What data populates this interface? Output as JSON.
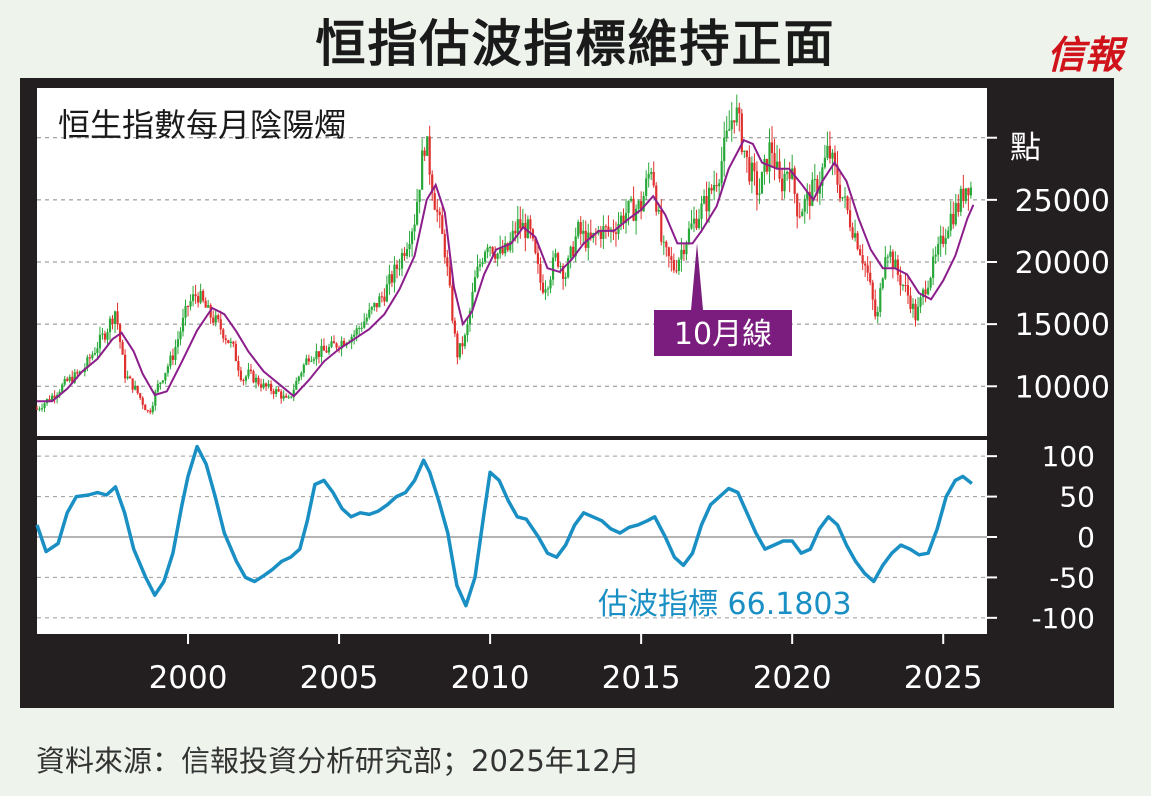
{
  "header": {
    "title": "恒指估波指標維持正面",
    "logo_text": "信報"
  },
  "footer": {
    "source": "資料來源：信報投資分析研究部；2025年12月"
  },
  "chart_data": [
    {
      "type": "candlestick",
      "title": "恒生指數每月陰陽燭",
      "ylabel": "點",
      "ylim": [
        6000,
        34000
      ],
      "yticks": [
        10000,
        15000,
        20000,
        25000
      ],
      "ytick_labels": [
        "10000",
        "15000",
        "20000",
        "25000"
      ],
      "grid": true,
      "annotation": "10月線",
      "colors": {
        "up": "#29a83a",
        "down": "#e0302e",
        "ma": "#8b1e8b",
        "annotation_bg": "#7b1d7e"
      },
      "closes": [
        [
          1995.0,
          8200
        ],
        [
          1995.5,
          9200
        ],
        [
          1996.0,
          10400
        ],
        [
          1996.5,
          11200
        ],
        [
          1997.0,
          13300
        ],
        [
          1997.3,
          14500
        ],
        [
          1997.6,
          16200
        ],
        [
          1997.9,
          11000
        ],
        [
          1998.3,
          9600
        ],
        [
          1998.7,
          7800
        ],
        [
          1999.0,
          10000
        ],
        [
          1999.5,
          12500
        ],
        [
          2000.0,
          16500
        ],
        [
          2000.3,
          17500
        ],
        [
          2000.7,
          15800
        ],
        [
          2001.0,
          15000
        ],
        [
          2001.5,
          13000
        ],
        [
          2001.8,
          10500
        ],
        [
          2002.0,
          11000
        ],
        [
          2002.5,
          10000
        ],
        [
          2003.0,
          9500
        ],
        [
          2003.3,
          8700
        ],
        [
          2003.7,
          11000
        ],
        [
          2004.0,
          12500
        ],
        [
          2004.5,
          12800
        ],
        [
          2005.0,
          13500
        ],
        [
          2005.5,
          14200
        ],
        [
          2006.0,
          15800
        ],
        [
          2006.5,
          17500
        ],
        [
          2007.0,
          20000
        ],
        [
          2007.5,
          23500
        ],
        [
          2007.85,
          30000
        ],
        [
          2008.2,
          24500
        ],
        [
          2008.5,
          21000
        ],
        [
          2008.9,
          12500
        ],
        [
          2009.2,
          14000
        ],
        [
          2009.5,
          18500
        ],
        [
          2009.9,
          21800
        ],
        [
          2010.3,
          20500
        ],
        [
          2010.6,
          21000
        ],
        [
          2010.9,
          23000
        ],
        [
          2011.3,
          22500
        ],
        [
          2011.7,
          18000
        ],
        [
          2011.9,
          18500
        ],
        [
          2012.2,
          20500
        ],
        [
          2012.5,
          19000
        ],
        [
          2012.9,
          22500
        ],
        [
          2013.3,
          21500
        ],
        [
          2013.6,
          22500
        ],
        [
          2014.0,
          22500
        ],
        [
          2014.5,
          24000
        ],
        [
          2015.0,
          24500
        ],
        [
          2015.35,
          28000
        ],
        [
          2015.7,
          21000
        ],
        [
          2016.1,
          19500
        ],
        [
          2016.5,
          22000
        ],
        [
          2016.8,
          23500
        ],
        [
          2017.2,
          25000
        ],
        [
          2017.6,
          27500
        ],
        [
          2018.1,
          32500
        ],
        [
          2018.5,
          28000
        ],
        [
          2018.9,
          25500
        ],
        [
          2019.3,
          29500
        ],
        [
          2019.6,
          26000
        ],
        [
          2019.9,
          28000
        ],
        [
          2020.2,
          24000
        ],
        [
          2020.5,
          25000
        ],
        [
          2020.9,
          26500
        ],
        [
          2021.2,
          29000
        ],
        [
          2021.5,
          26500
        ],
        [
          2021.9,
          23500
        ],
        [
          2022.2,
          21500
        ],
        [
          2022.5,
          19000
        ],
        [
          2022.8,
          15000
        ],
        [
          2023.1,
          21500
        ],
        [
          2023.5,
          19000
        ],
        [
          2023.9,
          17000
        ],
        [
          2024.1,
          15500
        ],
        [
          2024.4,
          18000
        ],
        [
          2024.8,
          20500
        ],
        [
          2025.2,
          23500
        ],
        [
          2025.5,
          24500
        ],
        [
          2025.8,
          26500
        ],
        [
          2025.95,
          25800
        ]
      ],
      "ma": [
        [
          1995.0,
          8800
        ],
        [
          1995.5,
          8800
        ],
        [
          1996.0,
          9800
        ],
        [
          1996.5,
          11200
        ],
        [
          1997.0,
          12200
        ],
        [
          1997.5,
          13800
        ],
        [
          1997.8,
          14300
        ],
        [
          1998.2,
          12800
        ],
        [
          1998.5,
          11000
        ],
        [
          1998.9,
          9300
        ],
        [
          1999.3,
          9600
        ],
        [
          1999.8,
          12000
        ],
        [
          2000.3,
          14500
        ],
        [
          2000.8,
          16300
        ],
        [
          2001.2,
          15800
        ],
        [
          2001.6,
          14400
        ],
        [
          2002.0,
          12800
        ],
        [
          2002.5,
          11200
        ],
        [
          2003.0,
          10200
        ],
        [
          2003.5,
          9200
        ],
        [
          2004.0,
          10500
        ],
        [
          2004.5,
          12000
        ],
        [
          2005.0,
          13000
        ],
        [
          2005.5,
          13800
        ],
        [
          2006.0,
          14600
        ],
        [
          2006.5,
          15800
        ],
        [
          2007.0,
          17800
        ],
        [
          2007.5,
          20500
        ],
        [
          2007.9,
          25000
        ],
        [
          2008.2,
          26200
        ],
        [
          2008.5,
          24000
        ],
        [
          2008.8,
          18000
        ],
        [
          2009.1,
          15000
        ],
        [
          2009.4,
          16000
        ],
        [
          2009.8,
          19000
        ],
        [
          2010.2,
          21000
        ],
        [
          2010.7,
          21500
        ],
        [
          2011.1,
          22800
        ],
        [
          2011.5,
          22000
        ],
        [
          2011.9,
          19500
        ],
        [
          2012.3,
          19200
        ],
        [
          2012.7,
          20200
        ],
        [
          2013.1,
          21500
        ],
        [
          2013.6,
          22500
        ],
        [
          2014.1,
          22500
        ],
        [
          2014.6,
          23500
        ],
        [
          2015.0,
          24200
        ],
        [
          2015.4,
          25300
        ],
        [
          2015.8,
          23800
        ],
        [
          2016.2,
          21500
        ],
        [
          2016.7,
          21500
        ],
        [
          2017.0,
          22500
        ],
        [
          2017.5,
          24500
        ],
        [
          2017.9,
          27500
        ],
        [
          2018.4,
          29800
        ],
        [
          2018.7,
          29500
        ],
        [
          2019.0,
          28000
        ],
        [
          2019.5,
          27500
        ],
        [
          2019.9,
          27500
        ],
        [
          2020.3,
          26300
        ],
        [
          2020.7,
          25000
        ],
        [
          2021.0,
          26500
        ],
        [
          2021.4,
          28000
        ],
        [
          2021.8,
          26500
        ],
        [
          2022.2,
          23500
        ],
        [
          2022.6,
          21000
        ],
        [
          2023.0,
          19500
        ],
        [
          2023.4,
          19500
        ],
        [
          2023.8,
          19000
        ],
        [
          2024.2,
          17500
        ],
        [
          2024.6,
          17000
        ],
        [
          2025.0,
          18500
        ],
        [
          2025.4,
          20500
        ],
        [
          2025.8,
          23500
        ],
        [
          2026.0,
          24600
        ]
      ]
    },
    {
      "type": "line",
      "title": "估波指標 66.1803",
      "ylim": [
        -120,
        120
      ],
      "yticks": [
        -100,
        -50,
        0,
        50,
        100
      ],
      "ytick_labels": [
        "-100",
        "-50",
        "0",
        "50",
        "100"
      ],
      "xticks": [
        2000,
        2005,
        2010,
        2015,
        2020,
        2025
      ],
      "xtick_labels": [
        "2000",
        "2005",
        "2010",
        "2015",
        "2020",
        "2025"
      ],
      "xlim": [
        1995.0,
        2026.45
      ],
      "colors": {
        "line": "#1a8fc4"
      },
      "series": [
        [
          1995.0,
          15
        ],
        [
          1995.3,
          -18
        ],
        [
          1995.7,
          -8
        ],
        [
          1996.0,
          30
        ],
        [
          1996.3,
          50
        ],
        [
          1996.7,
          52
        ],
        [
          1997.0,
          55
        ],
        [
          1997.3,
          52
        ],
        [
          1997.6,
          62
        ],
        [
          1997.9,
          30
        ],
        [
          1998.2,
          -15
        ],
        [
          1998.6,
          -50
        ],
        [
          1998.9,
          -72
        ],
        [
          1999.2,
          -55
        ],
        [
          1999.5,
          -20
        ],
        [
          1999.8,
          40
        ],
        [
          2000.0,
          75
        ],
        [
          2000.3,
          112
        ],
        [
          2000.6,
          90
        ],
        [
          2000.9,
          50
        ],
        [
          2001.2,
          5
        ],
        [
          2001.6,
          -30
        ],
        [
          2001.9,
          -50
        ],
        [
          2002.2,
          -55
        ],
        [
          2002.5,
          -48
        ],
        [
          2002.8,
          -40
        ],
        [
          2003.1,
          -30
        ],
        [
          2003.4,
          -25
        ],
        [
          2003.7,
          -15
        ],
        [
          2003.95,
          20
        ],
        [
          2004.2,
          65
        ],
        [
          2004.5,
          70
        ],
        [
          2004.8,
          55
        ],
        [
          2005.1,
          35
        ],
        [
          2005.4,
          25
        ],
        [
          2005.7,
          30
        ],
        [
          2006.0,
          28
        ],
        [
          2006.3,
          32
        ],
        [
          2006.6,
          40
        ],
        [
          2006.9,
          50
        ],
        [
          2007.2,
          55
        ],
        [
          2007.5,
          70
        ],
        [
          2007.8,
          95
        ],
        [
          2008.0,
          80
        ],
        [
          2008.3,
          45
        ],
        [
          2008.6,
          5
        ],
        [
          2008.9,
          -60
        ],
        [
          2009.2,
          -85
        ],
        [
          2009.5,
          -50
        ],
        [
          2009.8,
          30
        ],
        [
          2010.0,
          80
        ],
        [
          2010.3,
          70
        ],
        [
          2010.6,
          45
        ],
        [
          2010.9,
          25
        ],
        [
          2011.2,
          22
        ],
        [
          2011.6,
          0
        ],
        [
          2011.9,
          -20
        ],
        [
          2012.2,
          -25
        ],
        [
          2012.5,
          -10
        ],
        [
          2012.8,
          15
        ],
        [
          2013.1,
          30
        ],
        [
          2013.4,
          25
        ],
        [
          2013.7,
          20
        ],
        [
          2014.0,
          10
        ],
        [
          2014.3,
          5
        ],
        [
          2014.6,
          12
        ],
        [
          2014.9,
          15
        ],
        [
          2015.2,
          20
        ],
        [
          2015.45,
          25
        ],
        [
          2015.8,
          0
        ],
        [
          2016.1,
          -25
        ],
        [
          2016.4,
          -35
        ],
        [
          2016.7,
          -20
        ],
        [
          2017.0,
          15
        ],
        [
          2017.3,
          40
        ],
        [
          2017.6,
          50
        ],
        [
          2017.9,
          60
        ],
        [
          2018.2,
          55
        ],
        [
          2018.5,
          30
        ],
        [
          2018.8,
          5
        ],
        [
          2019.1,
          -15
        ],
        [
          2019.4,
          -10
        ],
        [
          2019.7,
          -5
        ],
        [
          2020.0,
          -5
        ],
        [
          2020.3,
          -20
        ],
        [
          2020.6,
          -15
        ],
        [
          2020.9,
          10
        ],
        [
          2021.2,
          25
        ],
        [
          2021.5,
          15
        ],
        [
          2021.8,
          -10
        ],
        [
          2022.1,
          -30
        ],
        [
          2022.4,
          -45
        ],
        [
          2022.7,
          -55
        ],
        [
          2023.0,
          -35
        ],
        [
          2023.3,
          -20
        ],
        [
          2023.6,
          -10
        ],
        [
          2023.9,
          -15
        ],
        [
          2024.2,
          -22
        ],
        [
          2024.5,
          -20
        ],
        [
          2024.8,
          10
        ],
        [
          2025.1,
          50
        ],
        [
          2025.4,
          70
        ],
        [
          2025.65,
          75
        ],
        [
          2025.95,
          66.2
        ]
      ]
    }
  ]
}
